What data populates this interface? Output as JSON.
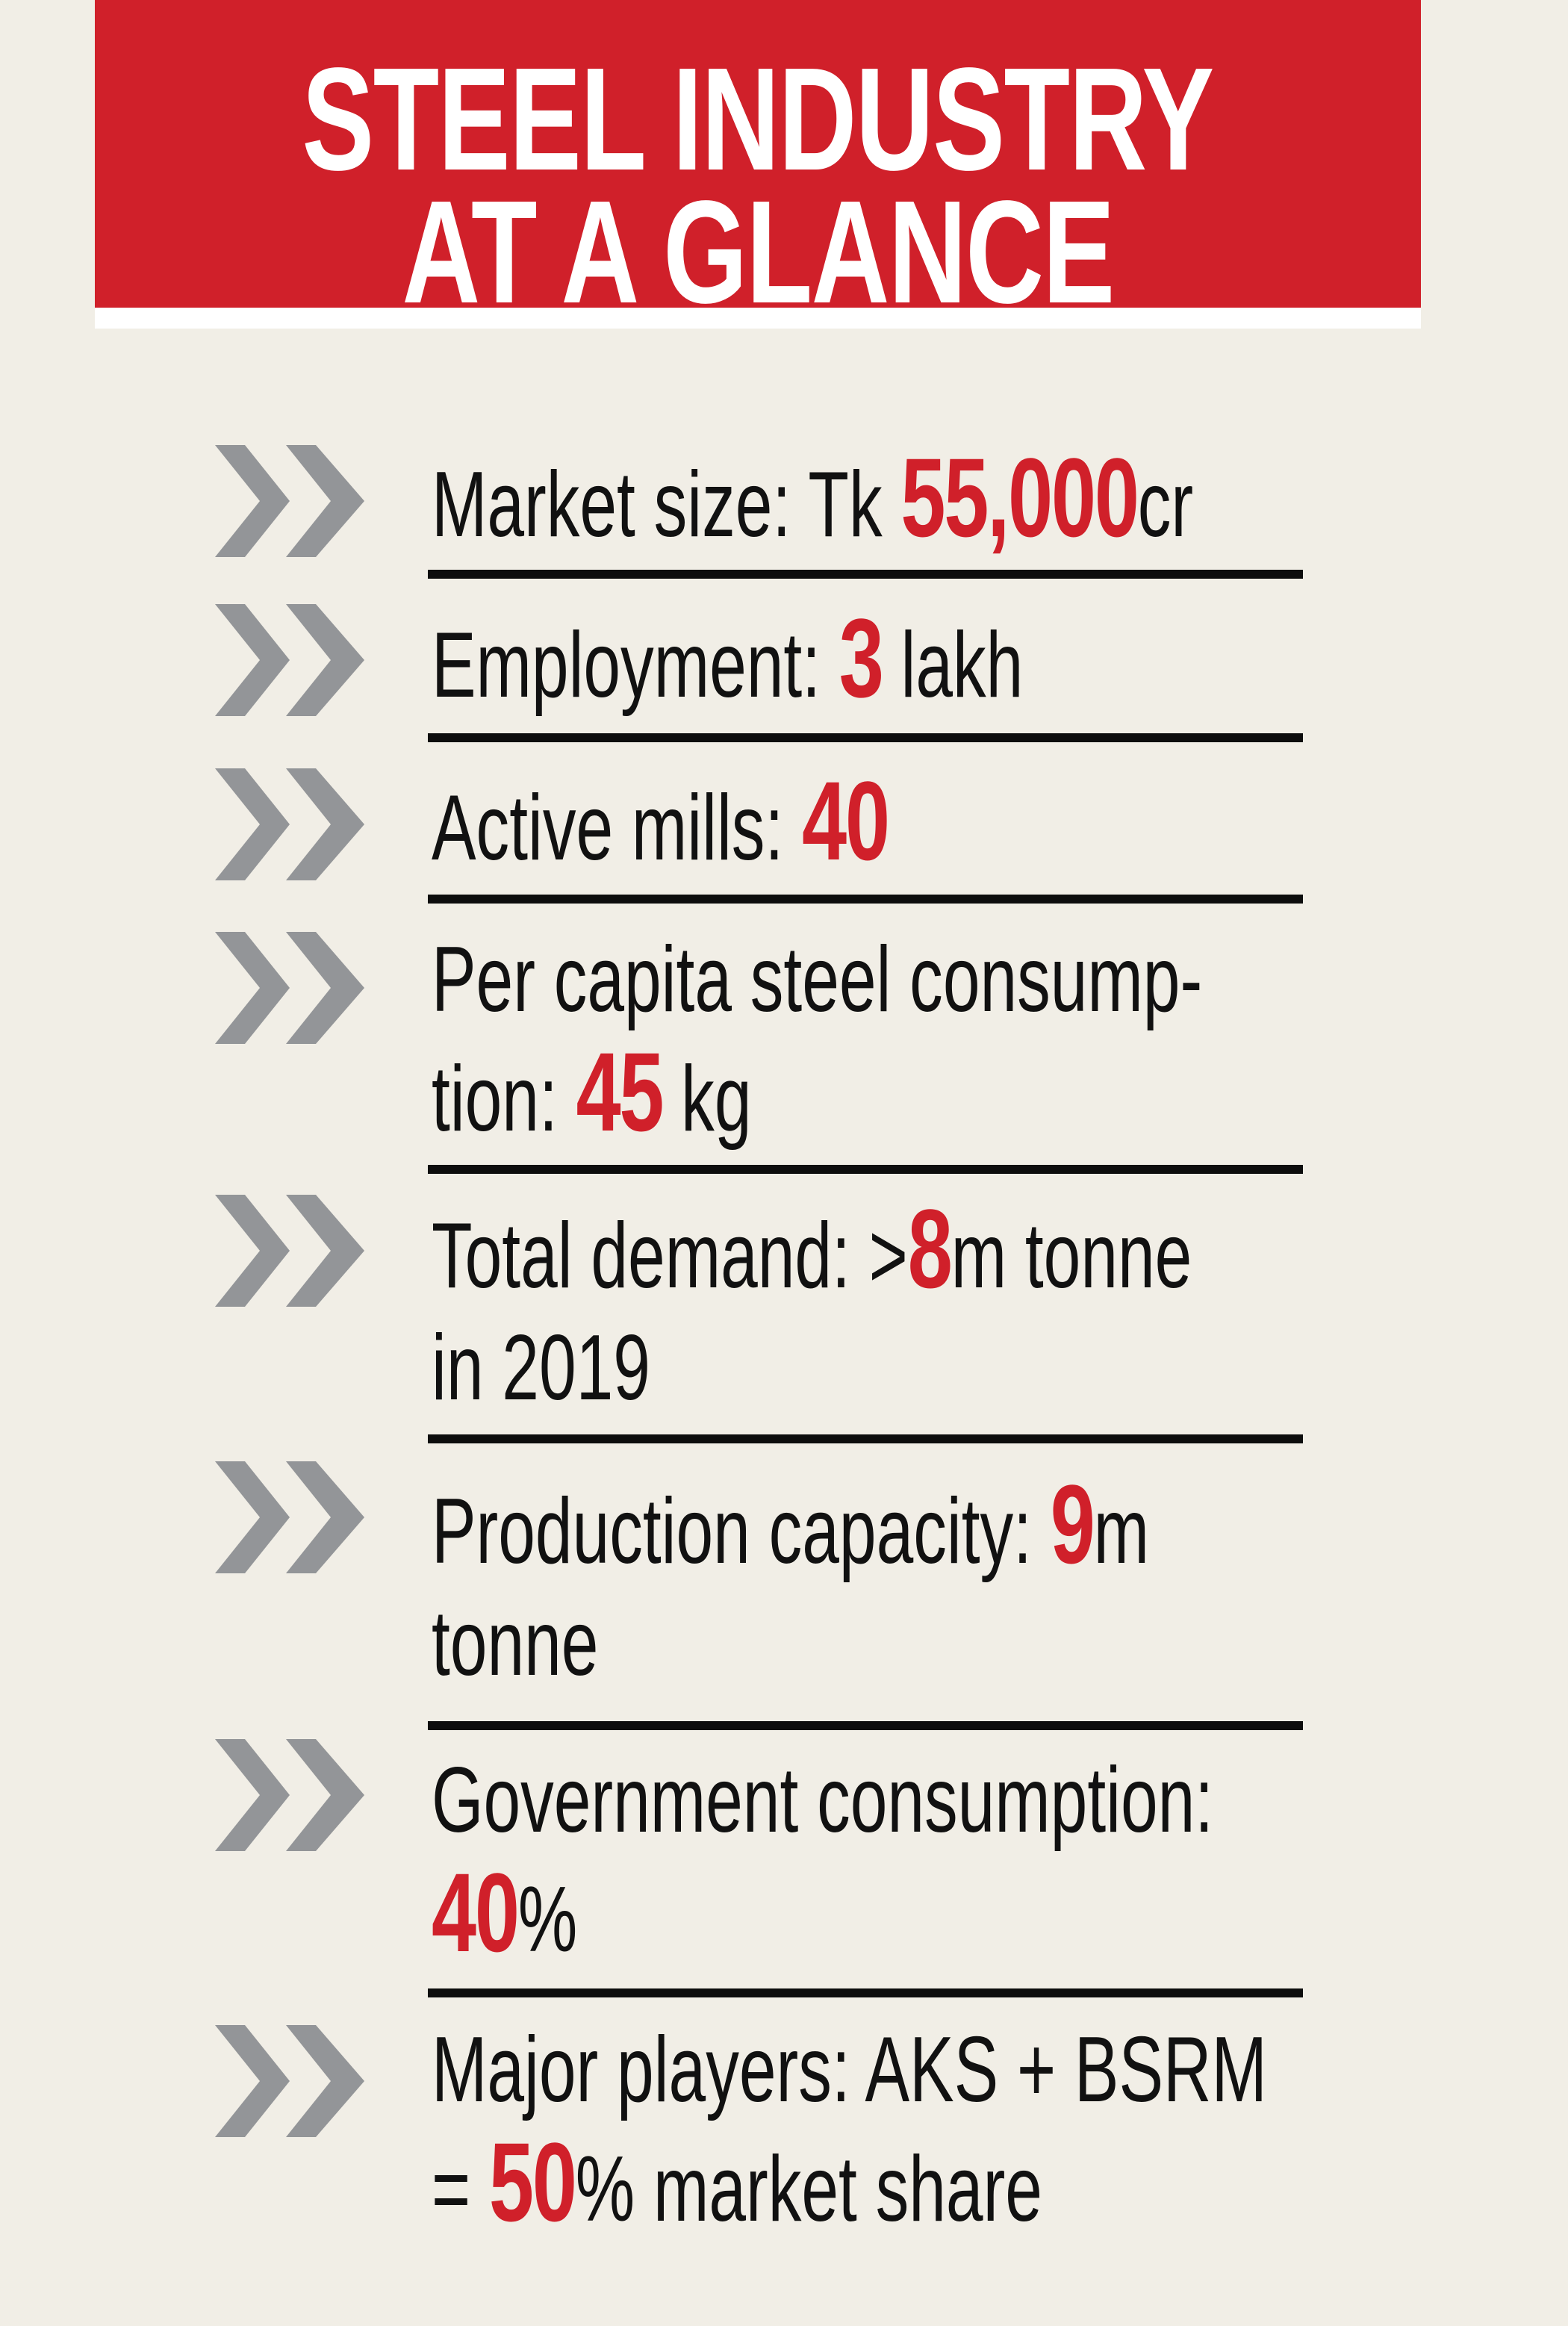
{
  "header": {
    "title_line1": "STEEL INDUSTRY",
    "title_line2": "AT A GLANCE"
  },
  "colors": {
    "accent": "#d0202a",
    "background": "#f1eee6",
    "chevron": "#939598"
  },
  "bullet_icon": "double-chevron-right-icon",
  "items": [
    {
      "lines": [
        [
          {
            "t": "Market size: Tk "
          },
          {
            "t": "55,000",
            "hl": true
          },
          {
            "t": "cr"
          }
        ]
      ]
    },
    {
      "lines": [
        [
          {
            "t": "Employment: "
          },
          {
            "t": "3",
            "hl": true
          },
          {
            "t": " lakh"
          }
        ]
      ]
    },
    {
      "lines": [
        [
          {
            "t": "Active mills: "
          },
          {
            "t": "40",
            "hl": true
          }
        ]
      ]
    },
    {
      "lines": [
        [
          {
            "t": "Per capita steel consump-"
          }
        ],
        [
          {
            "t": "tion: "
          },
          {
            "t": "45",
            "hl": true
          },
          {
            "t": " kg"
          }
        ]
      ]
    },
    {
      "lines": [
        [
          {
            "t": "Total demand: >"
          },
          {
            "t": "8",
            "hl": true
          },
          {
            "t": "m tonne"
          }
        ],
        [
          {
            "t": "in 2019"
          }
        ]
      ]
    },
    {
      "lines": [
        [
          {
            "t": "Production capacity: "
          },
          {
            "t": "9",
            "hl": true
          },
          {
            "t": "m"
          }
        ],
        [
          {
            "t": "tonne"
          }
        ]
      ]
    },
    {
      "lines": [
        [
          {
            "t": "Government consumption:"
          }
        ],
        [
          {
            "t": "40",
            "hl": true
          },
          {
            "t": "%"
          }
        ]
      ]
    },
    {
      "lines": [
        [
          {
            "t": "Major players: AKS + BSRM"
          }
        ],
        [
          {
            "t": "= "
          },
          {
            "t": "50",
            "hl": true
          },
          {
            "t": "% market share"
          }
        ]
      ]
    }
  ]
}
